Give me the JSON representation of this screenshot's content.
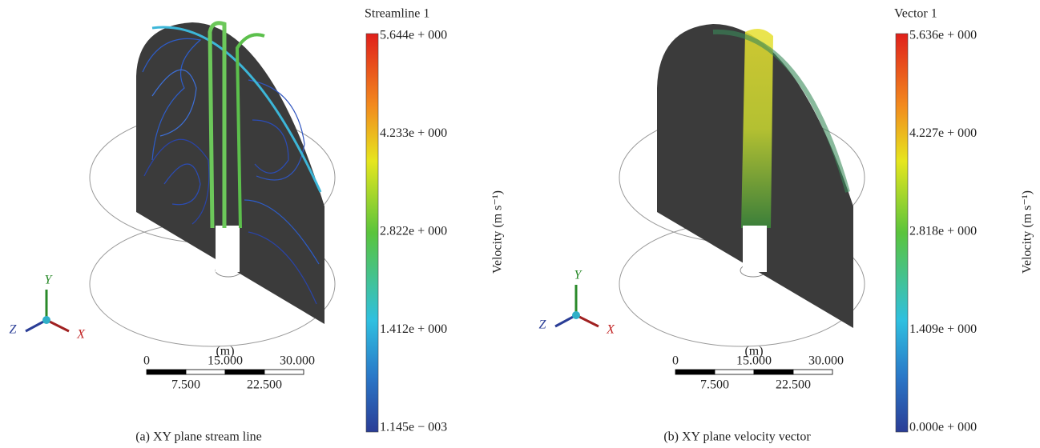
{
  "panels": [
    {
      "legend_title": "Streamline 1",
      "colorbar_labels": [
        "5.644e + 000",
        "4.233e + 000",
        "2.822e + 000",
        "1.412e + 000",
        "1.145e − 003"
      ],
      "colorbar_axis_label": "Velocity (m s⁻¹)",
      "axes": {
        "y": "Y",
        "z": "Z",
        "x": "X"
      },
      "scale_unit": "(m)",
      "scale_labels_top": [
        "0",
        "15.000",
        "30.000"
      ],
      "scale_labels_bottom": [
        "7.500",
        "22.500"
      ],
      "caption": "(a)  XY plane stream line"
    },
    {
      "legend_title": "Vector 1",
      "colorbar_labels": [
        "5.636e + 000",
        "4.227e + 000",
        "2.818e + 000",
        "1.409e + 000",
        "0.000e + 000"
      ],
      "colorbar_axis_label": "Velocity (m s⁻¹)",
      "axes": {
        "y": "Y",
        "z": "Z",
        "x": "X"
      },
      "scale_unit": "(m)",
      "scale_labels_top": [
        "0",
        "15.000",
        "30.000"
      ],
      "scale_labels_bottom": [
        "7.500",
        "22.500"
      ],
      "caption": "(b)  XY plane velocity vector"
    }
  ]
}
